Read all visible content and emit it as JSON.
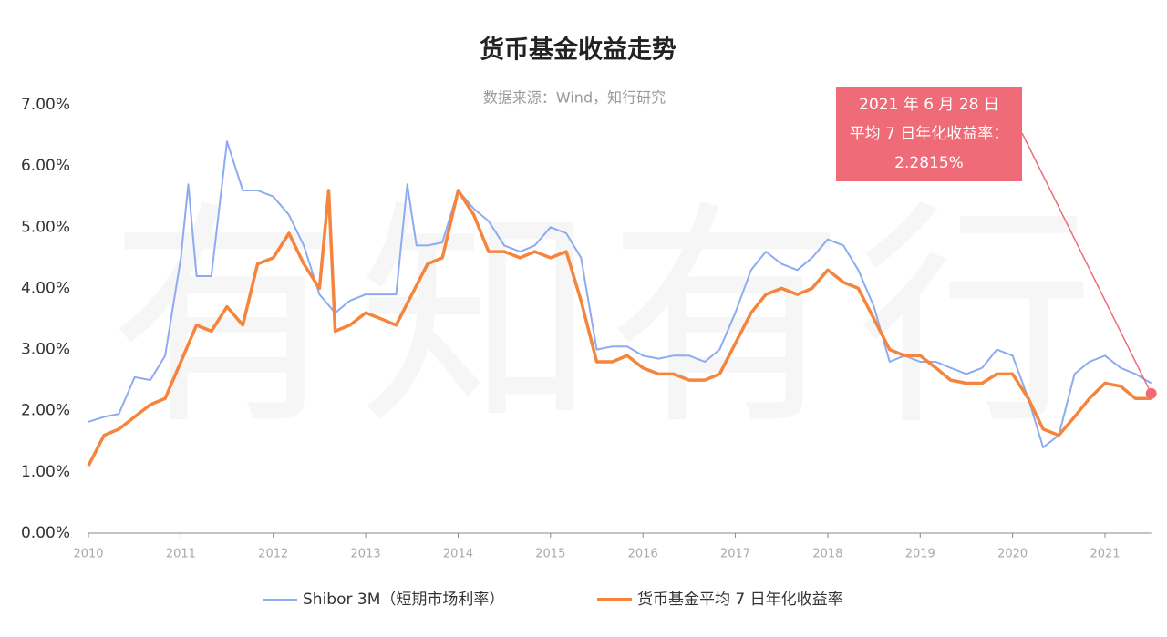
{
  "chart_data": {
    "type": "line",
    "title": "货币基金收益走势",
    "subtitle": "数据来源：Wind，知行研究",
    "watermark": "有知有行",
    "xlim": [
      2010,
      2021.5
    ],
    "xticks": [
      2010,
      2011,
      2012,
      2013,
      2014,
      2015,
      2016,
      2017,
      2018,
      2019,
      2020,
      2021
    ],
    "ylim": [
      0,
      7
    ],
    "yticks": [
      {
        "value": 0,
        "label": "0.00%"
      },
      {
        "value": 1,
        "label": "1.00%"
      },
      {
        "value": 2,
        "label": "2.00%"
      },
      {
        "value": 3,
        "label": "3.00%"
      },
      {
        "value": 4,
        "label": "4.00%"
      },
      {
        "value": 5,
        "label": "5.00%"
      },
      {
        "value": 6,
        "label": "6.00%"
      },
      {
        "value": 7,
        "label": "7.00%"
      }
    ],
    "series": [
      {
        "name": "Shibor 3M（短期市场利率）",
        "color": "#8eaaf0",
        "x": [
          2010.0,
          2010.17,
          2010.33,
          2010.5,
          2010.67,
          2010.83,
          2011.0,
          2011.08,
          2011.17,
          2011.33,
          2011.5,
          2011.67,
          2011.83,
          2012.0,
          2012.17,
          2012.33,
          2012.5,
          2012.67,
          2012.83,
          2013.0,
          2013.17,
          2013.33,
          2013.45,
          2013.55,
          2013.67,
          2013.83,
          2014.0,
          2014.17,
          2014.33,
          2014.5,
          2014.67,
          2014.83,
          2015.0,
          2015.17,
          2015.33,
          2015.5,
          2015.67,
          2015.83,
          2016.0,
          2016.17,
          2016.33,
          2016.5,
          2016.67,
          2016.83,
          2017.0,
          2017.17,
          2017.33,
          2017.5,
          2017.67,
          2017.83,
          2018.0,
          2018.17,
          2018.33,
          2018.5,
          2018.67,
          2018.83,
          2019.0,
          2019.17,
          2019.33,
          2019.5,
          2019.67,
          2019.83,
          2020.0,
          2020.17,
          2020.33,
          2020.5,
          2020.67,
          2020.83,
          2021.0,
          2021.17,
          2021.33,
          2021.5
        ],
        "values": [
          1.82,
          1.9,
          1.95,
          2.55,
          2.5,
          2.9,
          4.5,
          5.7,
          4.2,
          4.2,
          6.4,
          5.6,
          5.6,
          5.5,
          5.2,
          4.7,
          3.9,
          3.6,
          3.8,
          3.9,
          3.9,
          3.9,
          5.7,
          4.7,
          4.7,
          4.75,
          5.6,
          5.3,
          5.1,
          4.7,
          4.6,
          4.7,
          5.0,
          4.9,
          4.5,
          3.0,
          3.05,
          3.05,
          2.9,
          2.85,
          2.9,
          2.9,
          2.8,
          3.0,
          3.6,
          4.3,
          4.6,
          4.4,
          4.3,
          4.5,
          4.8,
          4.7,
          4.3,
          3.7,
          2.8,
          2.9,
          2.8,
          2.8,
          2.7,
          2.6,
          2.7,
          3.0,
          2.9,
          2.2,
          1.4,
          1.6,
          2.6,
          2.8,
          2.9,
          2.7,
          2.6,
          2.45
        ]
      },
      {
        "name": "货币基金平均 7 日年化收益率",
        "color": "#f5843c",
        "x": [
          2010.0,
          2010.17,
          2010.33,
          2010.5,
          2010.67,
          2010.83,
          2011.0,
          2011.17,
          2011.33,
          2011.5,
          2011.67,
          2011.83,
          2012.0,
          2012.17,
          2012.33,
          2012.5,
          2012.6,
          2012.67,
          2012.83,
          2013.0,
          2013.17,
          2013.33,
          2013.5,
          2013.67,
          2013.83,
          2014.0,
          2014.17,
          2014.33,
          2014.5,
          2014.67,
          2014.83,
          2015.0,
          2015.17,
          2015.33,
          2015.5,
          2015.67,
          2015.83,
          2016.0,
          2016.17,
          2016.33,
          2016.5,
          2016.67,
          2016.83,
          2017.0,
          2017.17,
          2017.33,
          2017.5,
          2017.67,
          2017.83,
          2018.0,
          2018.17,
          2018.33,
          2018.5,
          2018.67,
          2018.83,
          2019.0,
          2019.17,
          2019.33,
          2019.5,
          2019.67,
          2019.83,
          2020.0,
          2020.17,
          2020.33,
          2020.5,
          2020.67,
          2020.83,
          2021.0,
          2021.17,
          2021.33,
          2021.5
        ],
        "values": [
          1.1,
          1.6,
          1.7,
          1.9,
          2.1,
          2.2,
          2.8,
          3.4,
          3.3,
          3.7,
          3.4,
          4.4,
          4.5,
          4.9,
          4.4,
          4.0,
          5.6,
          3.3,
          3.4,
          3.6,
          3.5,
          3.4,
          3.9,
          4.4,
          4.5,
          5.6,
          5.2,
          4.6,
          4.6,
          4.5,
          4.6,
          4.5,
          4.6,
          3.8,
          2.8,
          2.8,
          2.9,
          2.7,
          2.6,
          2.6,
          2.5,
          2.5,
          2.6,
          3.1,
          3.6,
          3.9,
          4.0,
          3.9,
          4.0,
          4.3,
          4.1,
          4.0,
          3.5,
          3.0,
          2.9,
          2.9,
          2.7,
          2.5,
          2.45,
          2.45,
          2.6,
          2.6,
          2.2,
          1.7,
          1.6,
          1.9,
          2.2,
          2.45,
          2.4,
          2.2,
          2.2
        ]
      }
    ],
    "annotation": {
      "lines": [
        "2021 年 6 月 28 日",
        "平均 7 日年化收益率：",
        "2.2815%"
      ],
      "x": 2021.5,
      "y": 2.2815,
      "color": "#ef6b78"
    }
  }
}
